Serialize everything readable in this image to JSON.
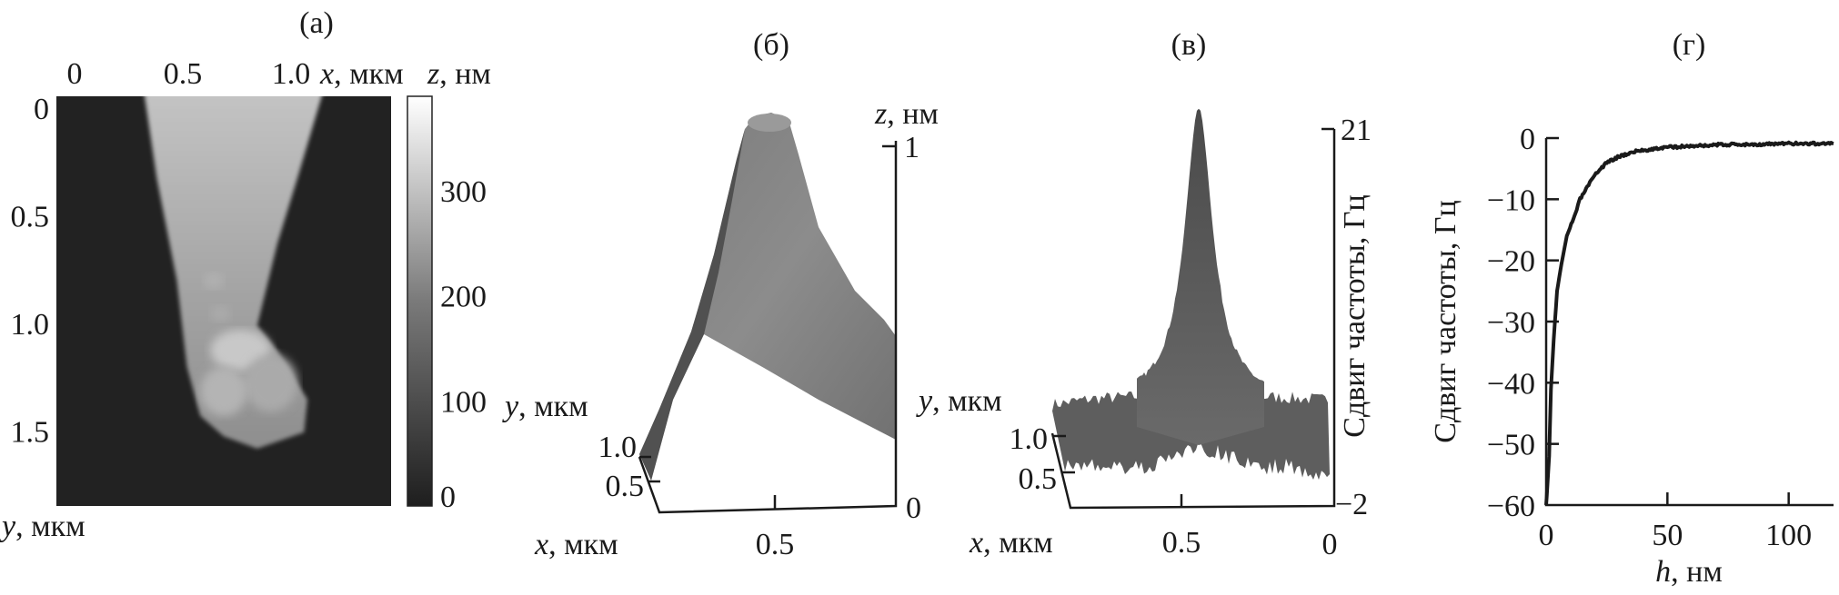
{
  "chart_data": [
    {
      "panel": "(а)",
      "type": "heatmap",
      "x_ticks": [
        "0",
        "0.5",
        "1.0"
      ],
      "x_tick_values": [
        0,
        0.5,
        1.0
      ],
      "xlabel_var": "x",
      "xlabel_unit": ", мкм",
      "y_ticks": [
        "0",
        "0.5",
        "1.0",
        "1.5"
      ],
      "y_tick_values": [
        0,
        0.5,
        1.0,
        1.5
      ],
      "ylabel_var": "y",
      "ylabel_unit": ", мкм",
      "colorbar": {
        "label_var": "z",
        "label_unit": ", нм",
        "ticks": [
          "0",
          "100",
          "200",
          "300"
        ],
        "range": [
          0,
          390
        ],
        "colormap": "gray"
      }
    },
    {
      "panel": "(б)",
      "type": "surface",
      "z_label_var": "z",
      "z_label_unit": ", нм",
      "z_ticks": [
        "0",
        "1"
      ],
      "x_label_var": "x",
      "x_label_unit": ", мкм",
      "x_ticks": [
        "0.5"
      ],
      "y_label_var": "y",
      "y_label_unit": ", мкм",
      "y_ticks": [
        "1.0",
        "0.5"
      ]
    },
    {
      "panel": "(в)",
      "type": "surface",
      "z_label": "Сдвиг частоты, Гц",
      "z_ticks": [
        "21",
        "−2"
      ],
      "z_range": [
        -2,
        21
      ],
      "x_label_var": "x",
      "x_label_unit": ", мкм",
      "x_ticks": [
        "0.5",
        "0"
      ],
      "y_label_var": "y",
      "y_label_unit": ", мкм",
      "y_ticks": [
        "1.0",
        "0.5"
      ]
    },
    {
      "panel": "(г)",
      "type": "line",
      "xlabel_var": "h",
      "xlabel_unit": ", нм",
      "ylabel": "Сдвиг частоты, Гц",
      "xlim": [
        0,
        120
      ],
      "ylim": [
        -60,
        0
      ],
      "x_ticks": [
        "0",
        "50",
        "100"
      ],
      "y_ticks": [
        "0",
        "−10",
        "−20",
        "−30",
        "−40",
        "−50",
        "−60"
      ],
      "grid": false,
      "x": [
        0,
        0.5,
        1.25,
        2,
        3.1,
        4.5,
        6.25,
        8.5,
        11.25,
        14,
        17.5,
        21,
        25,
        30,
        37.5,
        44,
        50,
        60,
        75,
        90,
        100,
        110,
        118.5
      ],
      "y": [
        -60,
        -57,
        -52,
        -41,
        -33,
        -25,
        -20.7,
        -16,
        -13.3,
        -10,
        -7.7,
        -5.6,
        -4,
        -3,
        -2.1,
        -1.8,
        -1.5,
        -1.3,
        -1.05,
        -1.0,
        -0.9,
        -0.9,
        -0.9
      ],
      "color": "#1a1a1a"
    }
  ]
}
